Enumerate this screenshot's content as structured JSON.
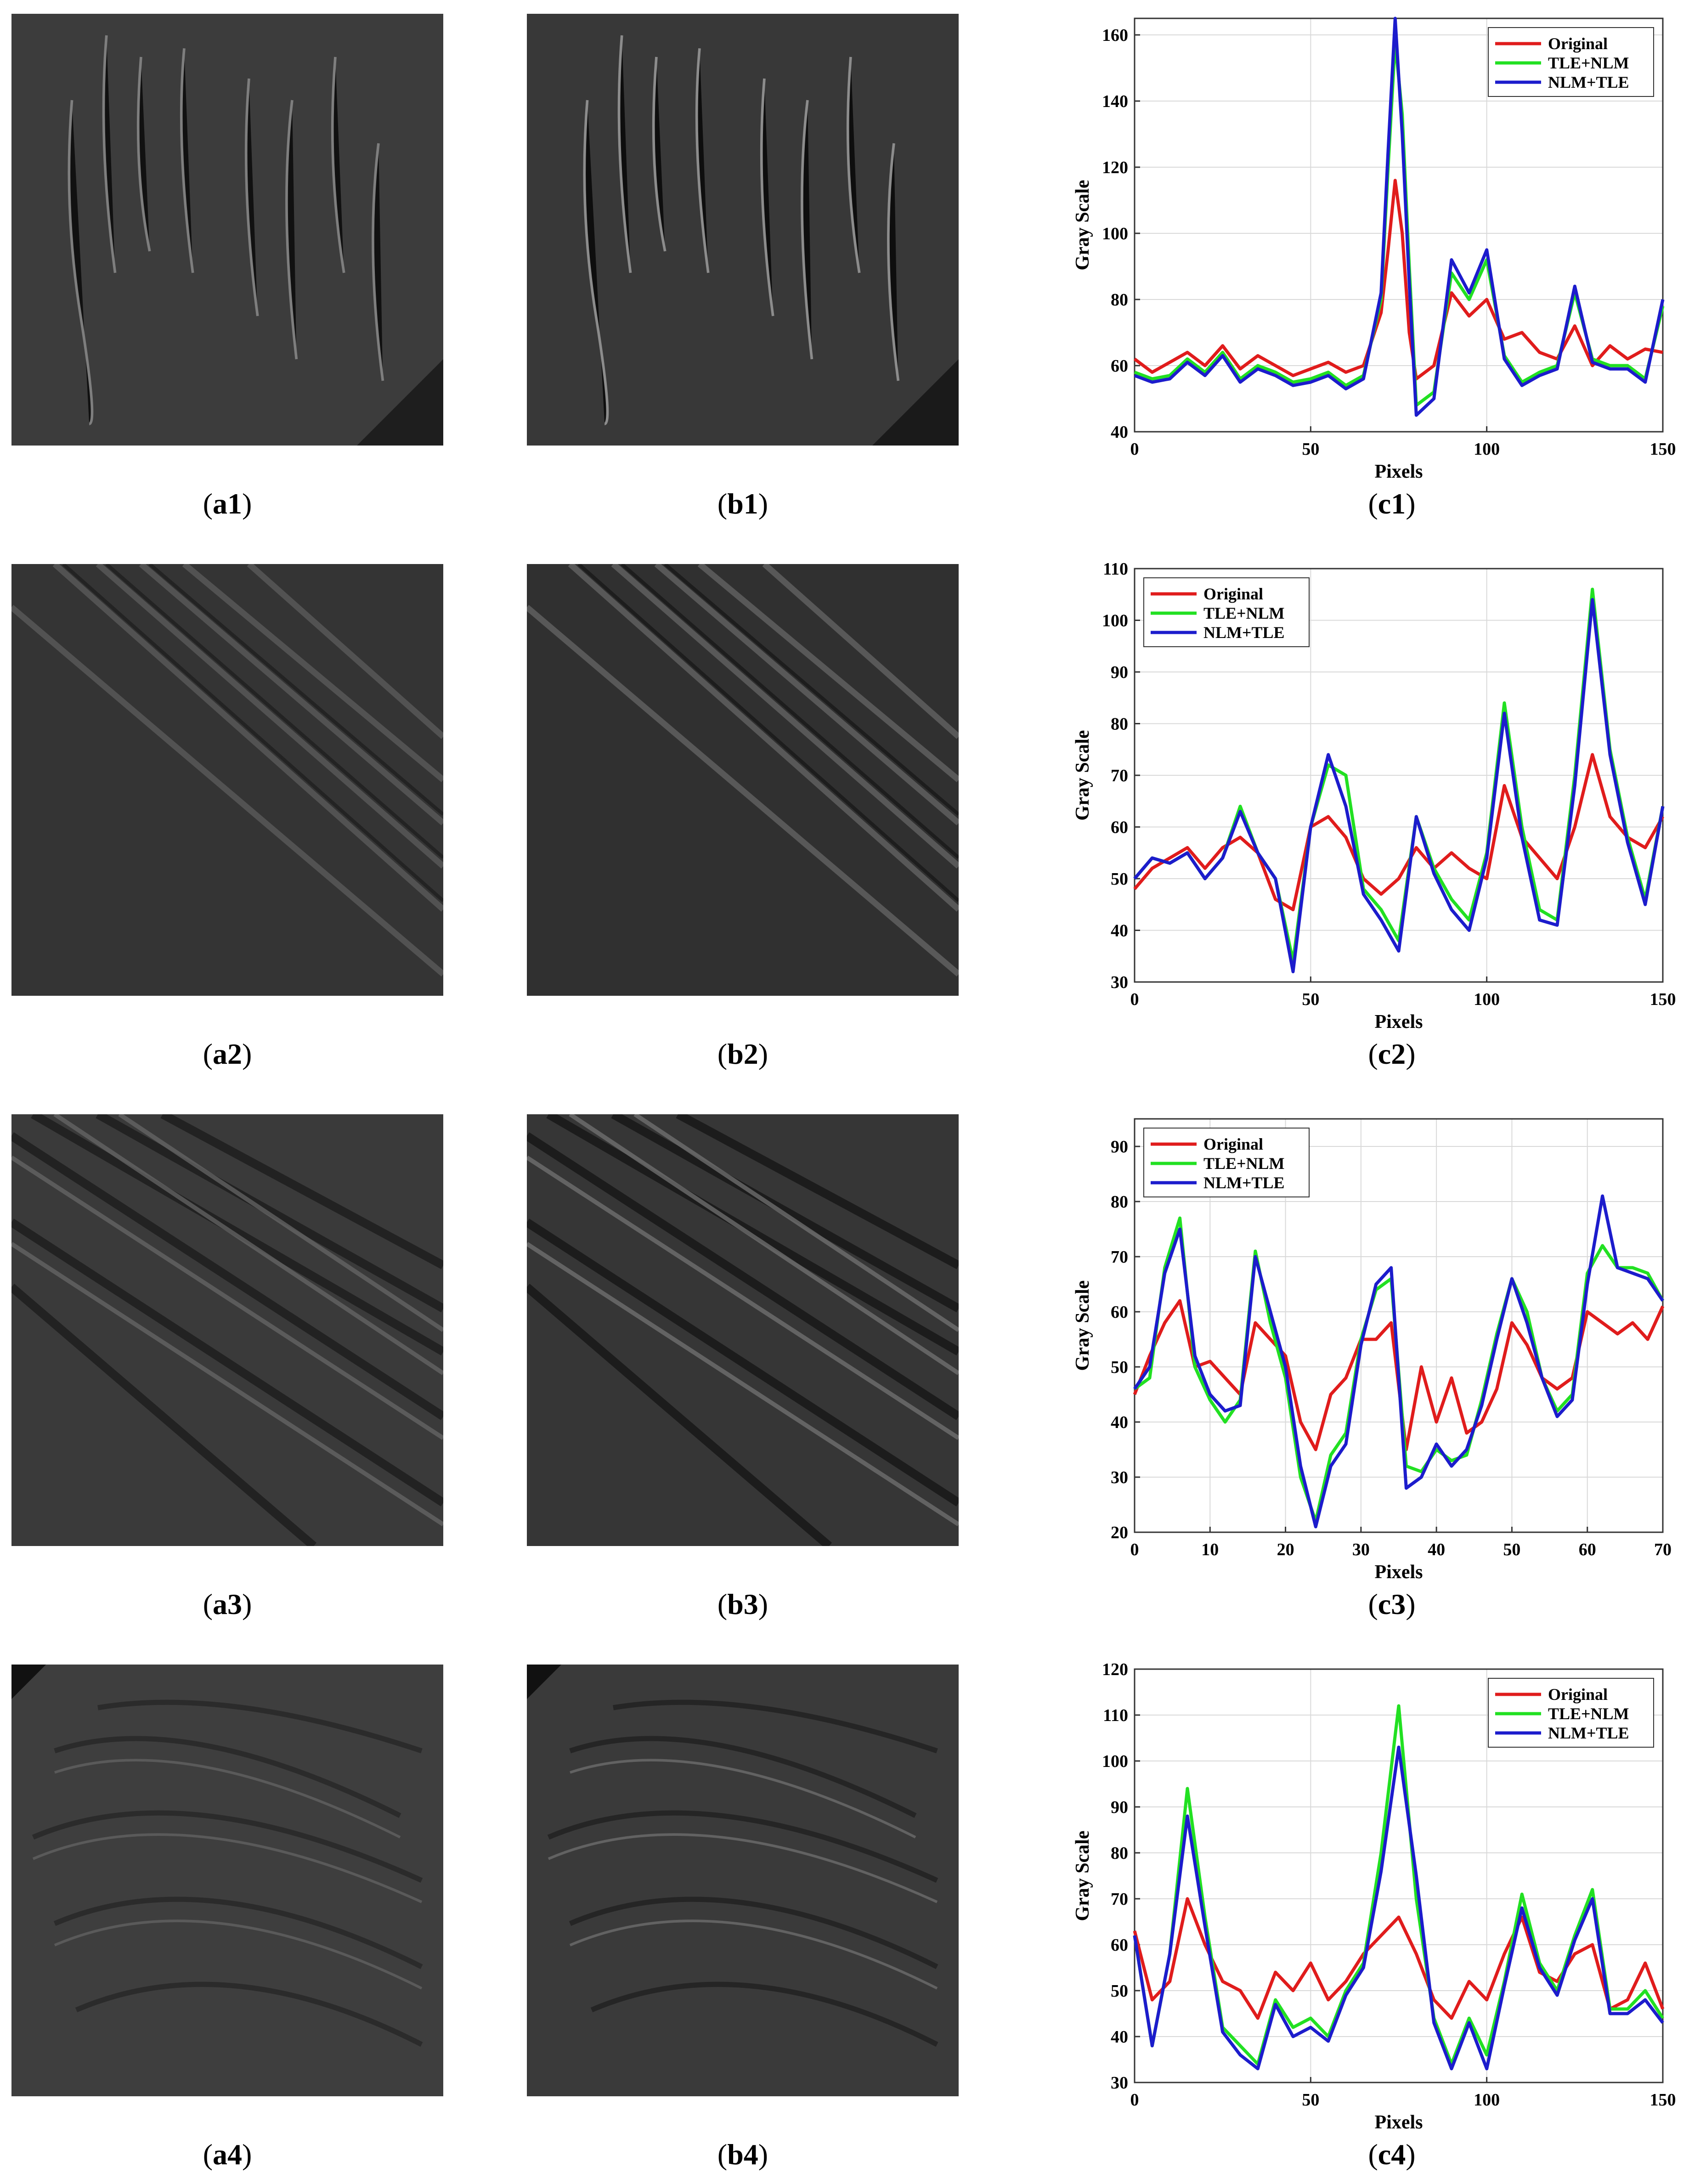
{
  "rows": [
    {
      "caption_a": {
        "paren_open": "(",
        "letter": "a1",
        "paren_close": ")"
      },
      "caption_b": {
        "paren_open": "(",
        "letter": "b1",
        "paren_close": ")"
      },
      "caption_c": {
        "paren_open": "(",
        "letter": "c1",
        "paren_close": ")"
      }
    },
    {
      "caption_a": {
        "paren_open": "(",
        "letter": "a2",
        "paren_close": ")"
      },
      "caption_b": {
        "paren_open": "(",
        "letter": "b2",
        "paren_close": ")"
      },
      "caption_c": {
        "paren_open": "(",
        "letter": "c2",
        "paren_close": ")"
      }
    },
    {
      "caption_a": {
        "paren_open": "(",
        "letter": "a3",
        "paren_close": ")"
      },
      "caption_b": {
        "paren_open": "(",
        "letter": "b3",
        "paren_close": ")"
      },
      "caption_c": {
        "paren_open": "(",
        "letter": "c3",
        "paren_close": ")"
      }
    },
    {
      "caption_a": {
        "paren_open": "(",
        "letter": "a4",
        "paren_close": ")"
      },
      "caption_b": {
        "paren_open": "(",
        "letter": "b4",
        "paren_close": ")"
      },
      "caption_c": {
        "paren_open": "(",
        "letter": "c4",
        "paren_close": ")"
      }
    }
  ],
  "chart_data": [
    {
      "type": "line",
      "xlabel": "Pixels",
      "ylabel": "Gray Scale",
      "xlim": [
        0,
        150
      ],
      "ylim": [
        40,
        165
      ],
      "xticks": [
        0,
        50,
        100,
        150
      ],
      "yticks": [
        40,
        60,
        80,
        100,
        120,
        140,
        160
      ],
      "grid": true,
      "legend_position": "top-right",
      "colors": {
        "Original": "#e01c1c",
        "TLE+NLM": "#22e022",
        "NLM+TLE": "#1c1ccc"
      },
      "series": [
        {
          "name": "Original",
          "x": [
            0,
            5,
            10,
            15,
            20,
            25,
            30,
            35,
            40,
            45,
            50,
            55,
            60,
            65,
            70,
            72,
            74,
            76,
            78,
            80,
            85,
            90,
            95,
            100,
            105,
            110,
            115,
            120,
            125,
            130,
            135,
            140,
            145,
            150
          ],
          "y": [
            62,
            58,
            61,
            64,
            60,
            66,
            59,
            63,
            60,
            57,
            59,
            61,
            58,
            60,
            76,
            95,
            116,
            100,
            70,
            56,
            60,
            82,
            75,
            80,
            68,
            70,
            64,
            62,
            72,
            60,
            66,
            62,
            65,
            64
          ]
        },
        {
          "name": "TLE+NLM",
          "x": [
            0,
            5,
            10,
            15,
            20,
            25,
            30,
            35,
            40,
            45,
            50,
            55,
            60,
            65,
            70,
            72,
            74,
            76,
            78,
            80,
            85,
            90,
            95,
            100,
            105,
            110,
            115,
            120,
            125,
            130,
            135,
            140,
            145,
            150
          ],
          "y": [
            58,
            56,
            57,
            62,
            58,
            64,
            56,
            60,
            58,
            55,
            56,
            58,
            54,
            57,
            80,
            120,
            158,
            136,
            90,
            48,
            52,
            88,
            80,
            92,
            63,
            55,
            58,
            60,
            82,
            62,
            60,
            60,
            56,
            78
          ]
        },
        {
          "name": "NLM+TLE",
          "x": [
            0,
            5,
            10,
            15,
            20,
            25,
            30,
            35,
            40,
            45,
            50,
            55,
            60,
            65,
            70,
            72,
            74,
            76,
            78,
            80,
            85,
            90,
            95,
            100,
            105,
            110,
            115,
            120,
            125,
            130,
            135,
            140,
            145,
            150
          ],
          "y": [
            57,
            55,
            56,
            61,
            57,
            63,
            55,
            59,
            57,
            54,
            55,
            57,
            53,
            56,
            82,
            125,
            165,
            130,
            85,
            45,
            50,
            92,
            82,
            95,
            62,
            54,
            57,
            59,
            84,
            61,
            59,
            59,
            55,
            80
          ]
        }
      ]
    },
    {
      "type": "line",
      "xlabel": "Pixels",
      "ylabel": "Gray Scale",
      "xlim": [
        0,
        150
      ],
      "ylim": [
        30,
        110
      ],
      "xticks": [
        0,
        50,
        100,
        150
      ],
      "yticks": [
        30,
        40,
        50,
        60,
        70,
        80,
        90,
        100,
        110
      ],
      "grid": true,
      "legend_position": "top-left",
      "colors": {
        "Original": "#e01c1c",
        "TLE+NLM": "#22e022",
        "NLM+TLE": "#1c1ccc"
      },
      "series": [
        {
          "name": "Original",
          "x": [
            0,
            5,
            10,
            15,
            20,
            25,
            30,
            35,
            40,
            45,
            50,
            55,
            60,
            65,
            70,
            75,
            80,
            85,
            90,
            95,
            100,
            105,
            110,
            115,
            120,
            125,
            130,
            135,
            140,
            145,
            150
          ],
          "y": [
            48,
            52,
            54,
            56,
            52,
            56,
            58,
            55,
            46,
            44,
            60,
            62,
            58,
            50,
            47,
            50,
            56,
            52,
            55,
            52,
            50,
            68,
            58,
            54,
            50,
            60,
            74,
            62,
            58,
            56,
            62
          ]
        },
        {
          "name": "TLE+NLM",
          "x": [
            0,
            5,
            10,
            15,
            20,
            25,
            30,
            35,
            40,
            45,
            50,
            55,
            60,
            65,
            70,
            75,
            80,
            85,
            90,
            95,
            100,
            105,
            110,
            115,
            120,
            125,
            130,
            135,
            140,
            145,
            150
          ],
          "y": [
            50,
            54,
            53,
            55,
            50,
            54,
            64,
            55,
            50,
            34,
            60,
            72,
            70,
            48,
            44,
            38,
            62,
            52,
            46,
            42,
            55,
            84,
            60,
            44,
            42,
            70,
            106,
            75,
            58,
            46,
            64
          ]
        },
        {
          "name": "NLM+TLE",
          "x": [
            0,
            5,
            10,
            15,
            20,
            25,
            30,
            35,
            40,
            45,
            50,
            55,
            60,
            65,
            70,
            75,
            80,
            85,
            90,
            95,
            100,
            105,
            110,
            115,
            120,
            125,
            130,
            135,
            140,
            145,
            150
          ],
          "y": [
            50,
            54,
            53,
            55,
            50,
            54,
            63,
            55,
            50,
            32,
            60,
            74,
            64,
            47,
            42,
            36,
            62,
            51,
            44,
            40,
            54,
            82,
            58,
            42,
            41,
            68,
            104,
            74,
            57,
            45,
            64
          ]
        }
      ]
    },
    {
      "type": "line",
      "xlabel": "Pixels",
      "ylabel": "Gray Scale",
      "xlim": [
        0,
        70
      ],
      "ylim": [
        20,
        95
      ],
      "xticks": [
        0,
        10,
        20,
        30,
        40,
        50,
        60,
        70
      ],
      "yticks": [
        20,
        30,
        40,
        50,
        60,
        70,
        80,
        90
      ],
      "grid": true,
      "legend_position": "top-left",
      "colors": {
        "Original": "#e01c1c",
        "TLE+NLM": "#22e022",
        "NLM+TLE": "#1c1ccc"
      },
      "series": [
        {
          "name": "Original",
          "x": [
            0,
            2,
            4,
            6,
            8,
            10,
            12,
            14,
            16,
            18,
            20,
            22,
            24,
            26,
            28,
            30,
            32,
            34,
            36,
            38,
            40,
            42,
            44,
            46,
            48,
            50,
            52,
            54,
            56,
            58,
            60,
            62,
            64,
            66,
            68,
            70
          ],
          "y": [
            45,
            52,
            58,
            62,
            50,
            51,
            48,
            45,
            58,
            55,
            52,
            40,
            35,
            45,
            48,
            55,
            55,
            58,
            35,
            50,
            40,
            48,
            38,
            40,
            46,
            58,
            54,
            48,
            46,
            48,
            60,
            58,
            56,
            58,
            55,
            61
          ]
        },
        {
          "name": "TLE+NLM",
          "x": [
            0,
            2,
            4,
            6,
            8,
            10,
            12,
            14,
            16,
            18,
            20,
            22,
            24,
            26,
            28,
            30,
            32,
            34,
            36,
            38,
            40,
            42,
            44,
            46,
            48,
            50,
            52,
            54,
            56,
            58,
            60,
            62,
            64,
            66,
            68,
            70
          ],
          "y": [
            46,
            48,
            68,
            77,
            50,
            44,
            40,
            44,
            71,
            58,
            48,
            30,
            22,
            34,
            38,
            55,
            64,
            66,
            32,
            31,
            35,
            33,
            34,
            44,
            56,
            66,
            60,
            48,
            42,
            45,
            67,
            72,
            68,
            68,
            67,
            62
          ]
        },
        {
          "name": "NLM+TLE",
          "x": [
            0,
            2,
            4,
            6,
            8,
            10,
            12,
            14,
            16,
            18,
            20,
            22,
            24,
            26,
            28,
            30,
            32,
            34,
            36,
            38,
            40,
            42,
            44,
            46,
            48,
            50,
            52,
            54,
            56,
            58,
            60,
            62,
            64,
            66,
            68,
            70
          ],
          "y": [
            46,
            50,
            67,
            75,
            52,
            45,
            42,
            43,
            70,
            60,
            50,
            32,
            21,
            32,
            36,
            54,
            65,
            68,
            28,
            30,
            36,
            32,
            35,
            43,
            55,
            66,
            58,
            48,
            41,
            44,
            65,
            81,
            68,
            67,
            66,
            62
          ]
        }
      ]
    },
    {
      "type": "line",
      "xlabel": "Pixels",
      "ylabel": "Gray Scale",
      "xlim": [
        0,
        150
      ],
      "ylim": [
        30,
        120
      ],
      "xticks": [
        0,
        50,
        100,
        150
      ],
      "yticks": [
        30,
        40,
        50,
        60,
        70,
        80,
        90,
        100,
        110,
        120
      ],
      "grid": true,
      "legend_position": "top-right",
      "colors": {
        "Original": "#e01c1c",
        "TLE+NLM": "#22e022",
        "NLM+TLE": "#1c1ccc"
      },
      "series": [
        {
          "name": "Original",
          "x": [
            0,
            5,
            10,
            15,
            20,
            25,
            30,
            35,
            40,
            45,
            50,
            55,
            60,
            65,
            70,
            75,
            80,
            85,
            90,
            95,
            100,
            105,
            110,
            115,
            120,
            125,
            130,
            135,
            140,
            145,
            150
          ],
          "y": [
            63,
            48,
            52,
            70,
            60,
            52,
            50,
            44,
            54,
            50,
            56,
            48,
            52,
            58,
            62,
            66,
            58,
            48,
            44,
            52,
            48,
            58,
            66,
            54,
            52,
            58,
            60,
            46,
            48,
            56,
            46
          ]
        },
        {
          "name": "TLE+NLM",
          "x": [
            0,
            5,
            10,
            15,
            20,
            25,
            30,
            35,
            40,
            45,
            50,
            55,
            60,
            65,
            70,
            75,
            80,
            85,
            90,
            95,
            100,
            105,
            110,
            115,
            120,
            125,
            130,
            135,
            140,
            145,
            150
          ],
          "y": [
            62,
            38,
            58,
            94,
            66,
            42,
            38,
            34,
            48,
            42,
            44,
            40,
            50,
            56,
            80,
            112,
            70,
            44,
            34,
            44,
            36,
            52,
            71,
            56,
            50,
            62,
            72,
            46,
            46,
            50,
            44
          ]
        },
        {
          "name": "NLM+TLE",
          "x": [
            0,
            5,
            10,
            15,
            20,
            25,
            30,
            35,
            40,
            45,
            50,
            55,
            60,
            65,
            70,
            75,
            80,
            85,
            90,
            95,
            100,
            105,
            110,
            115,
            120,
            125,
            130,
            135,
            140,
            145,
            150
          ],
          "y": [
            62,
            38,
            58,
            88,
            64,
            41,
            36,
            33,
            47,
            40,
            42,
            39,
            49,
            55,
            76,
            103,
            75,
            43,
            33,
            43,
            33,
            51,
            68,
            55,
            49,
            61,
            70,
            45,
            45,
            48,
            43
          ]
        }
      ]
    }
  ]
}
